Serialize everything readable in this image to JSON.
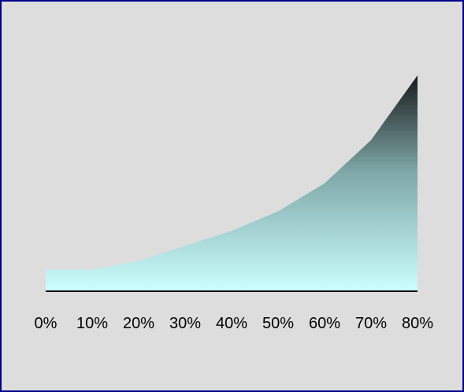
{
  "chart_data": {
    "type": "area",
    "categories": [
      "0%",
      "10%",
      "20%",
      "30%",
      "40%",
      "50%",
      "60%",
      "70%",
      "80%"
    ],
    "values": [
      1.0,
      1.0,
      1.4,
      2.1,
      2.8,
      3.7,
      5.0,
      7.0,
      10.0
    ],
    "ylim": [
      0,
      10.5
    ],
    "grid": false,
    "legend": "none",
    "colors": {
      "background": "#dddddd",
      "border": "#00008b",
      "fill_bottom": "#ccffff",
      "fill_mid": "#7fa8a8",
      "fill_top": "#1a1a1a",
      "axis": "#000000"
    }
  }
}
